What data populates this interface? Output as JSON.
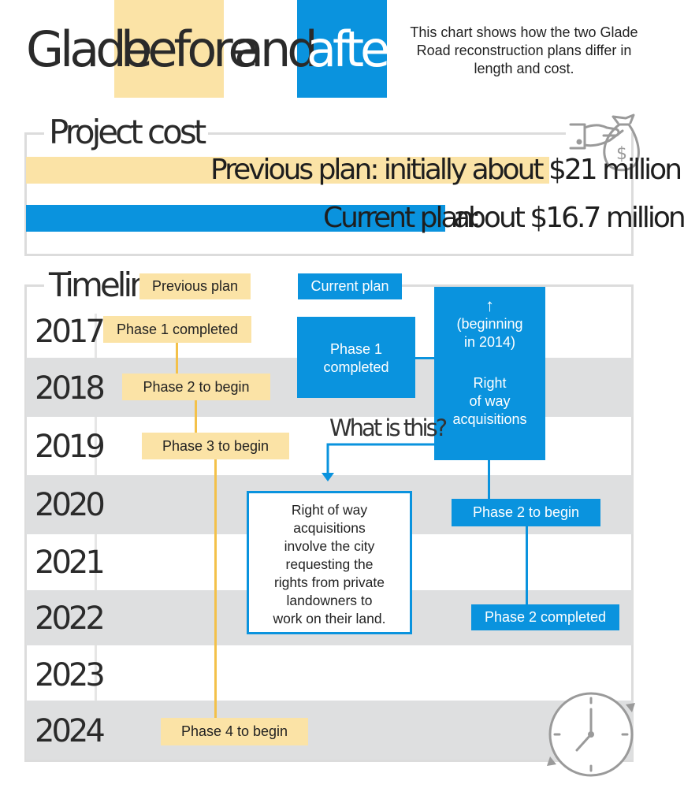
{
  "title": {
    "w1": "Glade",
    "w2": "before",
    "w3": "and",
    "w4": "after"
  },
  "intro": "This chart shows how the two Glade Road reconstruction plans differ in length and cost.",
  "cost": {
    "label": "Project cost",
    "previous": "Previous plan:  initially about $21 million",
    "current_label": "Current plan:",
    "current_value": "about $16.7 million",
    "money_symbol": "$"
  },
  "timeline": {
    "label": "Timeline",
    "legend_previous": "Previous plan",
    "legend_current": "Current plan",
    "years": [
      "2017",
      "2018",
      "2019",
      "2020",
      "2021",
      "2022",
      "2023",
      "2024"
    ],
    "previous": {
      "phase1": "Phase 1 completed",
      "phase2": "Phase 2 to begin",
      "phase3": "Phase 3 to begin",
      "phase4": "Phase 4 to begin"
    },
    "current": {
      "phase1_line1": "Phase 1",
      "phase1_line2": "completed",
      "arrow": "↑",
      "row_line1": "(beginning",
      "row_line2": "in 2014)",
      "row_line3": "Right",
      "row_line4": "of way",
      "row_line5": "acquisitions",
      "phase2_begin": "Phase 2 to begin",
      "phase2_done": "Phase 2 completed"
    },
    "question": "What is this?",
    "note": [
      "Right of way",
      "acquisitions",
      "involve the city",
      "requesting the",
      "rights from private",
      "landowners to",
      "work on their land."
    ]
  },
  "colors": {
    "yellow": "#fbe3a6",
    "blue": "#0a93de",
    "gray": "#dedfe0"
  },
  "icons": {
    "cost": "money-bag-hand-icon",
    "time": "clock-icon"
  }
}
